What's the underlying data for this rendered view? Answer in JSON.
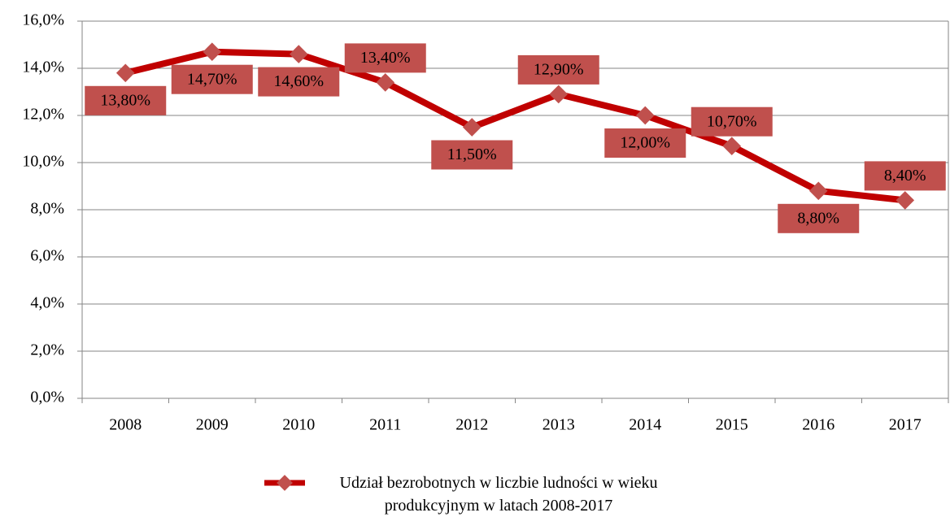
{
  "chart_data": {
    "type": "line",
    "categories": [
      "2008",
      "2009",
      "2010",
      "2011",
      "2012",
      "2013",
      "2014",
      "2015",
      "2016",
      "2017"
    ],
    "series": [
      {
        "name": "Udział bezrobotnych w liczbie ludności w wieku produkcyjnym w latach 2008-2017",
        "color": "#c00000",
        "values": [
          13.8,
          14.7,
          14.6,
          13.4,
          11.5,
          12.9,
          12.0,
          10.7,
          8.8,
          8.4
        ],
        "value_labels": [
          "13,80%",
          "14,70%",
          "14,60%",
          "13,40%",
          "11,50%",
          "12,90%",
          "12,00%",
          "10,70%",
          "8,80%",
          "8,40%"
        ]
      }
    ],
    "ylim": [
      0,
      16
    ],
    "yticks": [
      {
        "value": 0,
        "label": "0,0%"
      },
      {
        "value": 2,
        "label": "2,0%"
      },
      {
        "value": 4,
        "label": "4,0%"
      },
      {
        "value": 6,
        "label": "6,0%"
      },
      {
        "value": 8,
        "label": "8,0%"
      },
      {
        "value": 10,
        "label": "10,0%"
      },
      {
        "value": 12,
        "label": "12,0%"
      },
      {
        "value": 14,
        "label": "14,0%"
      },
      {
        "value": 16,
        "label": "16,0%"
      }
    ],
    "grid": true,
    "legend": "bottom"
  }
}
